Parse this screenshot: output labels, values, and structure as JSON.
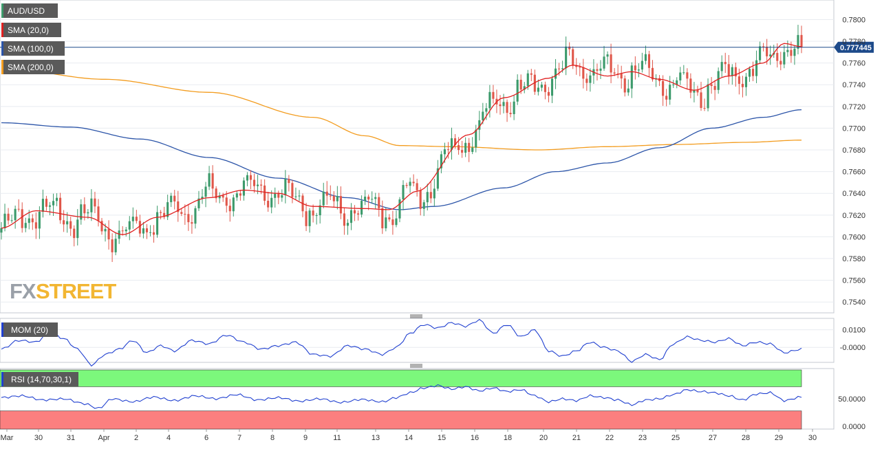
{
  "colors": {
    "background": "#ffffff",
    "panel_border": "#c4c8d0",
    "grid": "#e8ebf0",
    "bull": "#3c9a6b",
    "bear": "#e0574a",
    "sma20": "#e02020",
    "sma100": "#2b54a8",
    "sma200": "#f39c1e",
    "price_line": "#1d4a8a",
    "mom_line": "#2040d0",
    "rsi_line": "#2040d0",
    "rsi_overbought": "#7cf87c",
    "rsi_oversold": "#fb7f7f",
    "label_bg": "#5a5a5a",
    "label_text": "#ffffff",
    "axis_text": "#333333",
    "watermark_fx": "#9aa0a8",
    "watermark_street": "#f2b632"
  },
  "labels": {
    "symbol": "AUD/USD",
    "sma20": "SMA (20,0)",
    "sma100": "SMA (100,0)",
    "sma200": "SMA (200,0)",
    "mom": "MOM (20)",
    "rsi": "RSI (14,70,30,1)",
    "watermark_fx": "FX",
    "watermark_street": "STREET"
  },
  "chart_data": [
    {
      "type": "candlestick",
      "symbol": "AUD/USD",
      "current_price_label": "0.777445",
      "current_price": 0.777445,
      "ylim": [
        0.753,
        0.7818
      ],
      "y_ticks": [
        0.754,
        0.756,
        0.758,
        0.76,
        0.762,
        0.764,
        0.766,
        0.768,
        0.77,
        0.772,
        0.774,
        0.776,
        0.778,
        0.78
      ],
      "y_tick_labels": [
        "0.7540",
        "0.7560",
        "0.7580",
        "0.7600",
        "0.7620",
        "0.7640",
        "0.7660",
        "0.7680",
        "0.7700",
        "0.7720",
        "0.7740",
        "0.7760",
        "0.7780",
        "0.7800"
      ],
      "x_tick_labels": [
        "Mar",
        "30",
        "31",
        "Apr",
        "2",
        "4",
        "6",
        "7",
        "8",
        "9",
        "11",
        "13",
        "14",
        "15",
        "16",
        "18",
        "20",
        "21",
        "22",
        "23",
        "25",
        "27",
        "28",
        "29",
        "30"
      ],
      "sma20_anchors": [
        [
          0,
          0.7608
        ],
        [
          10,
          0.7624
        ],
        [
          25,
          0.7618
        ],
        [
          35,
          0.7602
        ],
        [
          45,
          0.7618
        ],
        [
          60,
          0.7636
        ],
        [
          70,
          0.7643
        ],
        [
          80,
          0.764
        ],
        [
          90,
          0.7628
        ],
        [
          105,
          0.7626
        ],
        [
          112,
          0.7625
        ],
        [
          120,
          0.7642
        ],
        [
          135,
          0.7694
        ],
        [
          145,
          0.7728
        ],
        [
          158,
          0.7746
        ],
        [
          165,
          0.7758
        ],
        [
          175,
          0.7748
        ],
        [
          182,
          0.7752
        ],
        [
          190,
          0.7745
        ],
        [
          200,
          0.7735
        ],
        [
          210,
          0.7748
        ],
        [
          220,
          0.776
        ],
        [
          226,
          0.7778
        ],
        [
          231,
          0.7775
        ]
      ],
      "sma100_anchors": [
        [
          0,
          0.7705
        ],
        [
          20,
          0.7701
        ],
        [
          40,
          0.769
        ],
        [
          60,
          0.7673
        ],
        [
          80,
          0.7654
        ],
        [
          100,
          0.7636
        ],
        [
          115,
          0.7625
        ],
        [
          125,
          0.7628
        ],
        [
          145,
          0.7645
        ],
        [
          160,
          0.766
        ],
        [
          175,
          0.7668
        ],
        [
          190,
          0.7682
        ],
        [
          205,
          0.77
        ],
        [
          220,
          0.771
        ],
        [
          231,
          0.7717
        ]
      ],
      "sma200_anchors": [
        [
          0,
          0.7755
        ],
        [
          30,
          0.7745
        ],
        [
          60,
          0.7733
        ],
        [
          90,
          0.771
        ],
        [
          105,
          0.7693
        ],
        [
          115,
          0.7684
        ],
        [
          130,
          0.7683
        ],
        [
          155,
          0.768
        ],
        [
          175,
          0.7683
        ],
        [
          195,
          0.7685
        ],
        [
          215,
          0.7687
        ],
        [
          231,
          0.7689
        ]
      ]
    },
    {
      "type": "line",
      "name": "MOM (20)",
      "y_ticks": [
        0.01,
        0.0
      ],
      "y_tick_labels": [
        "0.0100",
        "-0.0000"
      ],
      "ylim": [
        -0.0085,
        0.0165
      ],
      "anchors": [
        [
          0,
          -0.001
        ],
        [
          5,
          0.004
        ],
        [
          10,
          0.003
        ],
        [
          14,
          0.009
        ],
        [
          18,
          0.005
        ],
        [
          22,
          -0.001
        ],
        [
          26,
          -0.01
        ],
        [
          30,
          -0.004
        ],
        [
          34,
          -0.001
        ],
        [
          38,
          0.004
        ],
        [
          42,
          -0.003
        ],
        [
          46,
          0.001
        ],
        [
          50,
          -0.002
        ],
        [
          55,
          0.004
        ],
        [
          60,
          0.002
        ],
        [
          65,
          0.007
        ],
        [
          70,
          0.003
        ],
        [
          75,
          -0.001
        ],
        [
          80,
          0.001
        ],
        [
          85,
          0.003
        ],
        [
          90,
          -0.004
        ],
        [
          95,
          -0.005
        ],
        [
          100,
          0.001
        ],
        [
          105,
          -0.001
        ],
        [
          110,
          -0.004
        ],
        [
          114,
          0.0
        ],
        [
          118,
          0.008
        ],
        [
          122,
          0.013
        ],
        [
          126,
          0.011
        ],
        [
          130,
          0.014
        ],
        [
          134,
          0.012
        ],
        [
          138,
          0.0155
        ],
        [
          142,
          0.008
        ],
        [
          146,
          0.013
        ],
        [
          150,
          0.006
        ],
        [
          154,
          0.01
        ],
        [
          158,
          -0.002
        ],
        [
          162,
          -0.005
        ],
        [
          166,
          -0.002
        ],
        [
          170,
          0.003
        ],
        [
          174,
          0.0
        ],
        [
          178,
          -0.002
        ],
        [
          182,
          -0.008
        ],
        [
          186,
          -0.004
        ],
        [
          190,
          -0.007
        ],
        [
          194,
          0.002
        ],
        [
          198,
          0.006
        ],
        [
          202,
          0.004
        ],
        [
          206,
          0.003
        ],
        [
          210,
          0.005
        ],
        [
          214,
          0.001
        ],
        [
          218,
          0.003
        ],
        [
          222,
          0.002
        ],
        [
          226,
          -0.003
        ],
        [
          231,
          -0.001
        ]
      ]
    },
    {
      "type": "line",
      "name": "RSI (14,70,30,1)",
      "y_ticks": [
        50.0,
        0.0
      ],
      "y_tick_labels": [
        "50.0000",
        "0.0000"
      ],
      "ylim": [
        0,
        100
      ],
      "overbought": 70,
      "oversold": 30,
      "anchors": [
        [
          0,
          52
        ],
        [
          6,
          55
        ],
        [
          12,
          48
        ],
        [
          18,
          50
        ],
        [
          24,
          42
        ],
        [
          28,
          34
        ],
        [
          32,
          50
        ],
        [
          38,
          45
        ],
        [
          44,
          53
        ],
        [
          50,
          47
        ],
        [
          56,
          55
        ],
        [
          62,
          50
        ],
        [
          68,
          57
        ],
        [
          74,
          48
        ],
        [
          80,
          52
        ],
        [
          86,
          46
        ],
        [
          92,
          50
        ],
        [
          98,
          44
        ],
        [
          104,
          49
        ],
        [
          110,
          45
        ],
        [
          114,
          52
        ],
        [
          118,
          60
        ],
        [
          122,
          68
        ],
        [
          126,
          72
        ],
        [
          130,
          66
        ],
        [
          134,
          70
        ],
        [
          138,
          63
        ],
        [
          142,
          68
        ],
        [
          146,
          62
        ],
        [
          150,
          65
        ],
        [
          154,
          55
        ],
        [
          158,
          45
        ],
        [
          162,
          50
        ],
        [
          166,
          47
        ],
        [
          170,
          55
        ],
        [
          174,
          52
        ],
        [
          178,
          48
        ],
        [
          182,
          40
        ],
        [
          186,
          48
        ],
        [
          190,
          50
        ],
        [
          194,
          57
        ],
        [
          198,
          65
        ],
        [
          202,
          62
        ],
        [
          206,
          60
        ],
        [
          210,
          55
        ],
        [
          214,
          48
        ],
        [
          218,
          58
        ],
        [
          222,
          60
        ],
        [
          226,
          47
        ],
        [
          231,
          53
        ]
      ]
    }
  ]
}
